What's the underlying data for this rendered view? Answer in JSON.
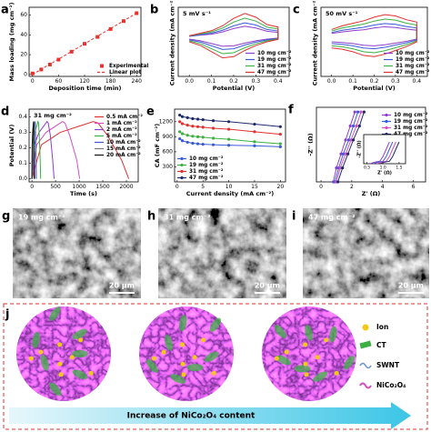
{
  "chart_data": [
    {
      "type": "scatter",
      "panel_label": "a",
      "xlabel": "Deposition time (min)",
      "ylabel": "Mass loading (mg cm⁻²)",
      "xlim": [
        -8,
        250
      ],
      "ylim": [
        -2,
        68
      ],
      "xticks": [
        0,
        60,
        120,
        180,
        240
      ],
      "yticks": [
        0,
        20,
        40,
        60
      ],
      "legend": "lower-right",
      "series": [
        {
          "name": "Experimental",
          "color": "#e8322e",
          "mark": "square",
          "x": [
            0,
            20,
            40,
            60,
            90,
            120,
            150,
            180,
            210,
            240
          ],
          "values": [
            1,
            5,
            10,
            15,
            23,
            31,
            38,
            46,
            54,
            62
          ]
        },
        {
          "name": "Linear plot",
          "color": "#e8322e",
          "mark": "dashed",
          "x": [
            0,
            240
          ],
          "values": [
            0,
            62
          ]
        }
      ]
    },
    {
      "type": "line",
      "panel_label": "b",
      "annotation": "5 mV s⁻¹",
      "xlabel": "Potential (V)",
      "ylabel": "Current density (mA cm⁻²)",
      "xlim": [
        -0.05,
        0.45
      ],
      "ylim": [
        -1.6,
        1.2
      ],
      "xticks": [
        {
          "value": 0,
          "label": "0.0"
        },
        0.1,
        0.2,
        0.3,
        0.4
      ],
      "legend": "lower-right",
      "x": [
        0,
        0.05,
        0.1,
        0.15,
        0.2,
        0.25,
        0.3,
        0.35,
        0.4,
        0.4,
        0.35,
        0.3,
        0.25,
        0.2,
        0.15,
        0.1,
        0.05,
        0
      ],
      "series": [
        {
          "name": "10 mg cm⁻²",
          "color": "#8e3fc9",
          "values": [
            0.02,
            0.07,
            0.11,
            0.2,
            0.34,
            0.43,
            0.36,
            0.23,
            0.18,
            -0.05,
            -0.09,
            -0.16,
            -0.25,
            -0.36,
            -0.38,
            -0.27,
            -0.16,
            -0.09
          ]
        },
        {
          "name": "19 mg cm⁻²",
          "color": "#3a5bd9",
          "values": [
            0.03,
            0.09,
            0.15,
            0.27,
            0.45,
            0.57,
            0.48,
            0.3,
            0.24,
            -0.06,
            -0.12,
            -0.21,
            -0.33,
            -0.48,
            -0.51,
            -0.36,
            -0.21,
            -0.12
          ]
        },
        {
          "name": "31 mg cm⁻²",
          "color": "#3cb043",
          "values": [
            0.04,
            0.12,
            0.2,
            0.36,
            0.6,
            0.76,
            0.64,
            0.4,
            0.32,
            -0.08,
            -0.16,
            -0.28,
            -0.44,
            -0.64,
            -0.68,
            -0.48,
            -0.28,
            -0.16
          ]
        },
        {
          "name": "47 mg cm⁻²",
          "color": "#e03030",
          "values": [
            0.05,
            0.15,
            0.25,
            0.45,
            0.75,
            0.95,
            0.8,
            0.5,
            0.4,
            -0.1,
            -0.2,
            -0.35,
            -0.55,
            -0.8,
            -0.85,
            -0.6,
            -0.35,
            -0.2
          ]
        }
      ]
    },
    {
      "type": "line",
      "panel_label": "c",
      "annotation": "50 mV s⁻¹",
      "xlabel": "Potential (V)",
      "ylabel": "Current density (mA cm⁻²)",
      "xlim": [
        -0.05,
        0.45
      ],
      "ylim": [
        -1.6,
        1.2
      ],
      "xticks": [
        {
          "value": 0,
          "label": "0.0"
        },
        0.1,
        0.2,
        0.3,
        0.4
      ],
      "legend": "lower-right",
      "x": [
        0,
        0.05,
        0.1,
        0.15,
        0.2,
        0.25,
        0.3,
        0.35,
        0.4,
        0.4,
        0.35,
        0.3,
        0.25,
        0.2,
        0.15,
        0.1,
        0.05,
        0
      ],
      "series": [
        {
          "name": "10 mg cm⁻²",
          "color": "#8e3fc9",
          "values": [
            0.14,
            0.2,
            0.25,
            0.29,
            0.36,
            0.41,
            0.38,
            0.32,
            0.27,
            -0.09,
            -0.18,
            -0.25,
            -0.32,
            -0.36,
            -0.34,
            -0.27,
            -0.23,
            -0.2
          ]
        },
        {
          "name": "19 mg cm⁻²",
          "color": "#3a5bd9",
          "values": [
            0.18,
            0.27,
            0.33,
            0.39,
            0.48,
            0.54,
            0.51,
            0.42,
            0.36,
            -0.12,
            -0.24,
            -0.33,
            -0.42,
            -0.48,
            -0.45,
            -0.36,
            -0.3,
            -0.27
          ]
        },
        {
          "name": "31 mg cm⁻²",
          "color": "#3cb043",
          "values": [
            0.24,
            0.36,
            0.44,
            0.52,
            0.64,
            0.72,
            0.68,
            0.56,
            0.48,
            -0.16,
            -0.32,
            -0.44,
            -0.56,
            -0.64,
            -0.6,
            -0.48,
            -0.4,
            -0.36
          ]
        },
        {
          "name": "47 mg cm⁻²",
          "color": "#e03030",
          "values": [
            0.3,
            0.45,
            0.55,
            0.65,
            0.8,
            0.9,
            0.85,
            0.7,
            0.6,
            -0.2,
            -0.4,
            -0.55,
            -0.7,
            -0.8,
            -0.75,
            -0.6,
            -0.5,
            -0.45
          ]
        }
      ]
    },
    {
      "type": "line",
      "panel_label": "d",
      "annotation": "31 mg cm⁻²",
      "xlabel": "Time (s)",
      "ylabel": "Potential (V)",
      "xlim": [
        -60,
        2250
      ],
      "ylim": [
        -0.02,
        0.45
      ],
      "xticks": [
        0,
        500,
        1000,
        1500,
        2000
      ],
      "yticks": [
        {
          "value": 0,
          "label": "0.0"
        },
        0.1,
        0.2,
        0.3,
        0.4
      ],
      "legend": "upper-right",
      "series": [
        {
          "name": "0.5 mA cm⁻²",
          "color": "#e03030",
          "x": [
            0,
            200,
            600,
            1000,
            1300,
            1400,
            1600,
            1900,
            2050
          ],
          "values": [
            0,
            0.22,
            0.3,
            0.34,
            0.37,
            0.36,
            0.28,
            0.12,
            0
          ]
        },
        {
          "name": "1 mA cm⁻²",
          "color": "#d04fc0",
          "x": [
            0,
            100,
            300,
            500,
            650,
            700,
            800,
            950,
            1010
          ],
          "values": [
            0,
            0.22,
            0.3,
            0.34,
            0.37,
            0.36,
            0.28,
            0.12,
            0
          ]
        },
        {
          "name": "2 mA cm⁻²",
          "color": "#8e3fc9",
          "x": [
            0,
            50,
            150,
            250,
            320,
            345,
            390,
            440,
            470
          ],
          "values": [
            0,
            0.22,
            0.3,
            0.34,
            0.37,
            0.36,
            0.28,
            0.12,
            0
          ]
        },
        {
          "name": "5 mA cm⁻²",
          "color": "#3cb043",
          "x": [
            0,
            20,
            60,
            100,
            130,
            140,
            155,
            175,
            185
          ],
          "values": [
            0,
            0.22,
            0.3,
            0.34,
            0.37,
            0.36,
            0.28,
            0.12,
            0
          ]
        },
        {
          "name": "10 mA cm⁻²",
          "color": "#3a5bd9",
          "x": [
            0,
            10,
            30,
            50,
            65,
            70,
            78,
            88,
            93
          ],
          "values": [
            0,
            0.22,
            0.3,
            0.34,
            0.37,
            0.36,
            0.28,
            0.12,
            0
          ]
        },
        {
          "name": "15 mA cm⁻²",
          "color": "#777777",
          "x": [
            0,
            7,
            20,
            33,
            43,
            47,
            52,
            58,
            62
          ],
          "values": [
            0,
            0.22,
            0.3,
            0.34,
            0.37,
            0.36,
            0.28,
            0.12,
            0
          ]
        },
        {
          "name": "20 mA cm⁻²",
          "color": "#111111",
          "x": [
            0,
            5,
            15,
            25,
            32,
            35,
            39,
            44,
            47
          ],
          "values": [
            0,
            0.22,
            0.3,
            0.34,
            0.37,
            0.36,
            0.28,
            0.12,
            0
          ]
        }
      ]
    },
    {
      "type": "line",
      "panel_label": "e",
      "xlabel": "Current density (mA cm⁻²)",
      "ylabel": "CA (mF cm⁻²)",
      "xlim": [
        -0.5,
        21
      ],
      "ylim": [
        0,
        1450
      ],
      "xticks": [
        0,
        5,
        10,
        15,
        20
      ],
      "yticks": [
        300,
        600,
        900,
        1200
      ],
      "legend": "lower-left",
      "x": [
        0.5,
        1,
        2,
        3,
        4,
        5,
        7,
        10,
        15,
        20
      ],
      "series": [
        {
          "name": "10 mg cm⁻²",
          "color": "#3a5bd9",
          "mark": "line-marker",
          "values": [
            860,
            820,
            790,
            770,
            760,
            750,
            740,
            730,
            720,
            700
          ]
        },
        {
          "name": "19 mg cm⁻²",
          "color": "#3cb043",
          "mark": "line-marker",
          "values": [
            1000,
            960,
            930,
            910,
            900,
            890,
            870,
            850,
            800,
            760
          ]
        },
        {
          "name": "31 mg cm⁻²",
          "color": "#e03030",
          "mark": "line-marker",
          "values": [
            1200,
            1160,
            1130,
            1110,
            1100,
            1090,
            1070,
            1050,
            1000,
            950
          ]
        },
        {
          "name": "47 mg cm⁻²",
          "color": "#1f2a6b",
          "mark": "line-marker",
          "values": [
            1330,
            1300,
            1280,
            1260,
            1250,
            1240,
            1220,
            1200,
            1150,
            1100
          ]
        }
      ]
    },
    {
      "type": "line",
      "panel_label": "f",
      "xlabel": "Z' (Ω)",
      "ylabel": "-Z'' (Ω)",
      "xlim": [
        -0.3,
        6.8
      ],
      "ylim": [
        0,
        8
      ],
      "xticks": [
        0,
        2,
        4,
        6
      ],
      "legend": "upper-right",
      "series": [
        {
          "name": "10 mg cm⁻²",
          "color": "#8e3fc9",
          "mark": "line-marker",
          "x": [
            0.8,
            1.0,
            1.3,
            1.6,
            1.9,
            2.2
          ],
          "values": [
            0,
            1.5,
            3,
            4.5,
            6,
            7.5
          ]
        },
        {
          "name": "19 mg cm⁻²",
          "color": "#3a5bd9",
          "mark": "line-marker",
          "x": [
            0.9,
            1.15,
            1.45,
            1.8,
            2.1,
            2.4
          ],
          "values": [
            0,
            1.5,
            3,
            4.5,
            6,
            7.5
          ]
        },
        {
          "name": "31 mg cm⁻²",
          "color": "#d04fc0",
          "mark": "line-marker",
          "x": [
            1.0,
            1.25,
            1.6,
            1.95,
            2.3,
            2.6
          ],
          "values": [
            0,
            1.5,
            3,
            4.5,
            6,
            7.5
          ]
        },
        {
          "name": "47 mg cm⁻²",
          "color": "#1f2a6b",
          "mark": "line-marker",
          "x": [
            1.1,
            1.4,
            1.75,
            2.1,
            2.5,
            2.8
          ],
          "values": [
            0,
            1.5,
            3,
            4.5,
            6,
            7.5
          ]
        }
      ]
    },
    {
      "type": "line",
      "xlabel": "Z' (Ω)",
      "ylabel": "-Z'' (Ω)",
      "xlim": [
        0.4,
        1.7
      ],
      "ylim": [
        0,
        1.2
      ],
      "xticks": [
        0.5,
        {
          "value": 1,
          "label": "1.0"
        },
        1.5
      ],
      "series": [
        {
          "color": "#8e3fc9",
          "x": [
            0.6,
            0.7,
            0.8,
            0.9,
            1.0,
            1.1,
            1.2
          ],
          "values": [
            0,
            0.05,
            0.08,
            0.1,
            0.3,
            0.6,
            0.9
          ]
        },
        {
          "color": "#3a5bd9",
          "x": [
            0.7,
            0.8,
            0.9,
            1.0,
            1.1,
            1.2,
            1.3
          ],
          "values": [
            0,
            0.05,
            0.08,
            0.1,
            0.3,
            0.6,
            0.9
          ]
        },
        {
          "color": "#d04fc0",
          "x": [
            0.8,
            0.9,
            1.0,
            1.1,
            1.2,
            1.3,
            1.4
          ],
          "values": [
            0,
            0.05,
            0.08,
            0.1,
            0.3,
            0.6,
            0.9
          ]
        },
        {
          "color": "#1f2a6b",
          "x": [
            0.9,
            1.0,
            1.1,
            1.2,
            1.3,
            1.4,
            1.5
          ],
          "values": [
            0,
            0.05,
            0.08,
            0.1,
            0.3,
            0.6,
            0.9
          ]
        }
      ]
    }
  ],
  "images": [
    {
      "panel_label": "g",
      "caption": "19 mg cm⁻²",
      "scale_bar": "20 μm"
    },
    {
      "panel_label": "h",
      "caption": "31 mg cm⁻²",
      "scale_bar": "20 μm"
    },
    {
      "panel_label": "i",
      "caption": "47 mg cm⁻²",
      "scale_bar": "20 μm"
    }
  ],
  "schematic": {
    "panel_label": "j",
    "legend": [
      "Ion",
      "CT",
      "SWNT",
      "NiCo₂O₄"
    ],
    "arrow_text": "Increase of NiCo₂O₄ content"
  }
}
